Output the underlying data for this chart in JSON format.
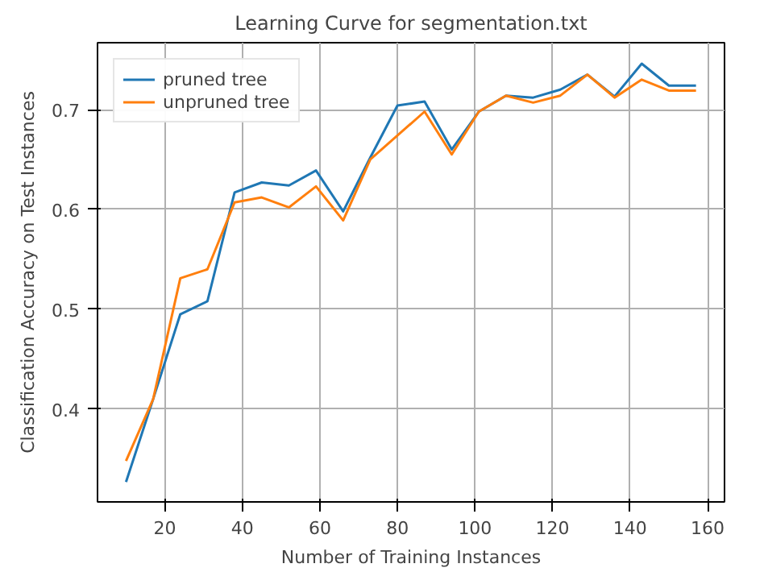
{
  "chart_data": {
    "type": "line",
    "title": "Learning Curve for segmentation.txt",
    "xlabel": "Number of Training Instances",
    "ylabel": "Classification Accuracy on Test Instances",
    "x": [
      10,
      17,
      24,
      31,
      38,
      45,
      52,
      59,
      66,
      73,
      80,
      87,
      94,
      101,
      108,
      115,
      122,
      129,
      136,
      143,
      150,
      157
    ],
    "series": [
      {
        "name": "pruned tree",
        "color": "#1f77b4",
        "values": [
          0.327,
          0.41,
          0.495,
          0.508,
          0.617,
          0.627,
          0.624,
          0.639,
          0.598,
          0.652,
          0.704,
          0.708,
          0.66,
          0.698,
          0.714,
          0.712,
          0.72,
          0.735,
          0.713,
          0.746,
          0.724,
          0.724
        ]
      },
      {
        "name": "unpruned tree",
        "color": "#ff7f0e",
        "values": [
          0.348,
          0.41,
          0.531,
          0.54,
          0.607,
          0.612,
          0.602,
          0.623,
          0.589,
          0.65,
          0.674,
          0.698,
          0.655,
          0.698,
          0.714,
          0.707,
          0.714,
          0.735,
          0.712,
          0.73,
          0.719,
          0.719
        ]
      }
    ],
    "xlim": [
      2.65,
      164.35
    ],
    "ylim": [
      0.307,
      0.767
    ],
    "xticks": [
      20,
      40,
      60,
      80,
      100,
      120,
      140,
      160
    ],
    "yticks": [
      0.4,
      0.5,
      0.6,
      0.7
    ],
    "grid": true,
    "legend": "top left",
    "line_style": "solid",
    "marker": "none"
  }
}
